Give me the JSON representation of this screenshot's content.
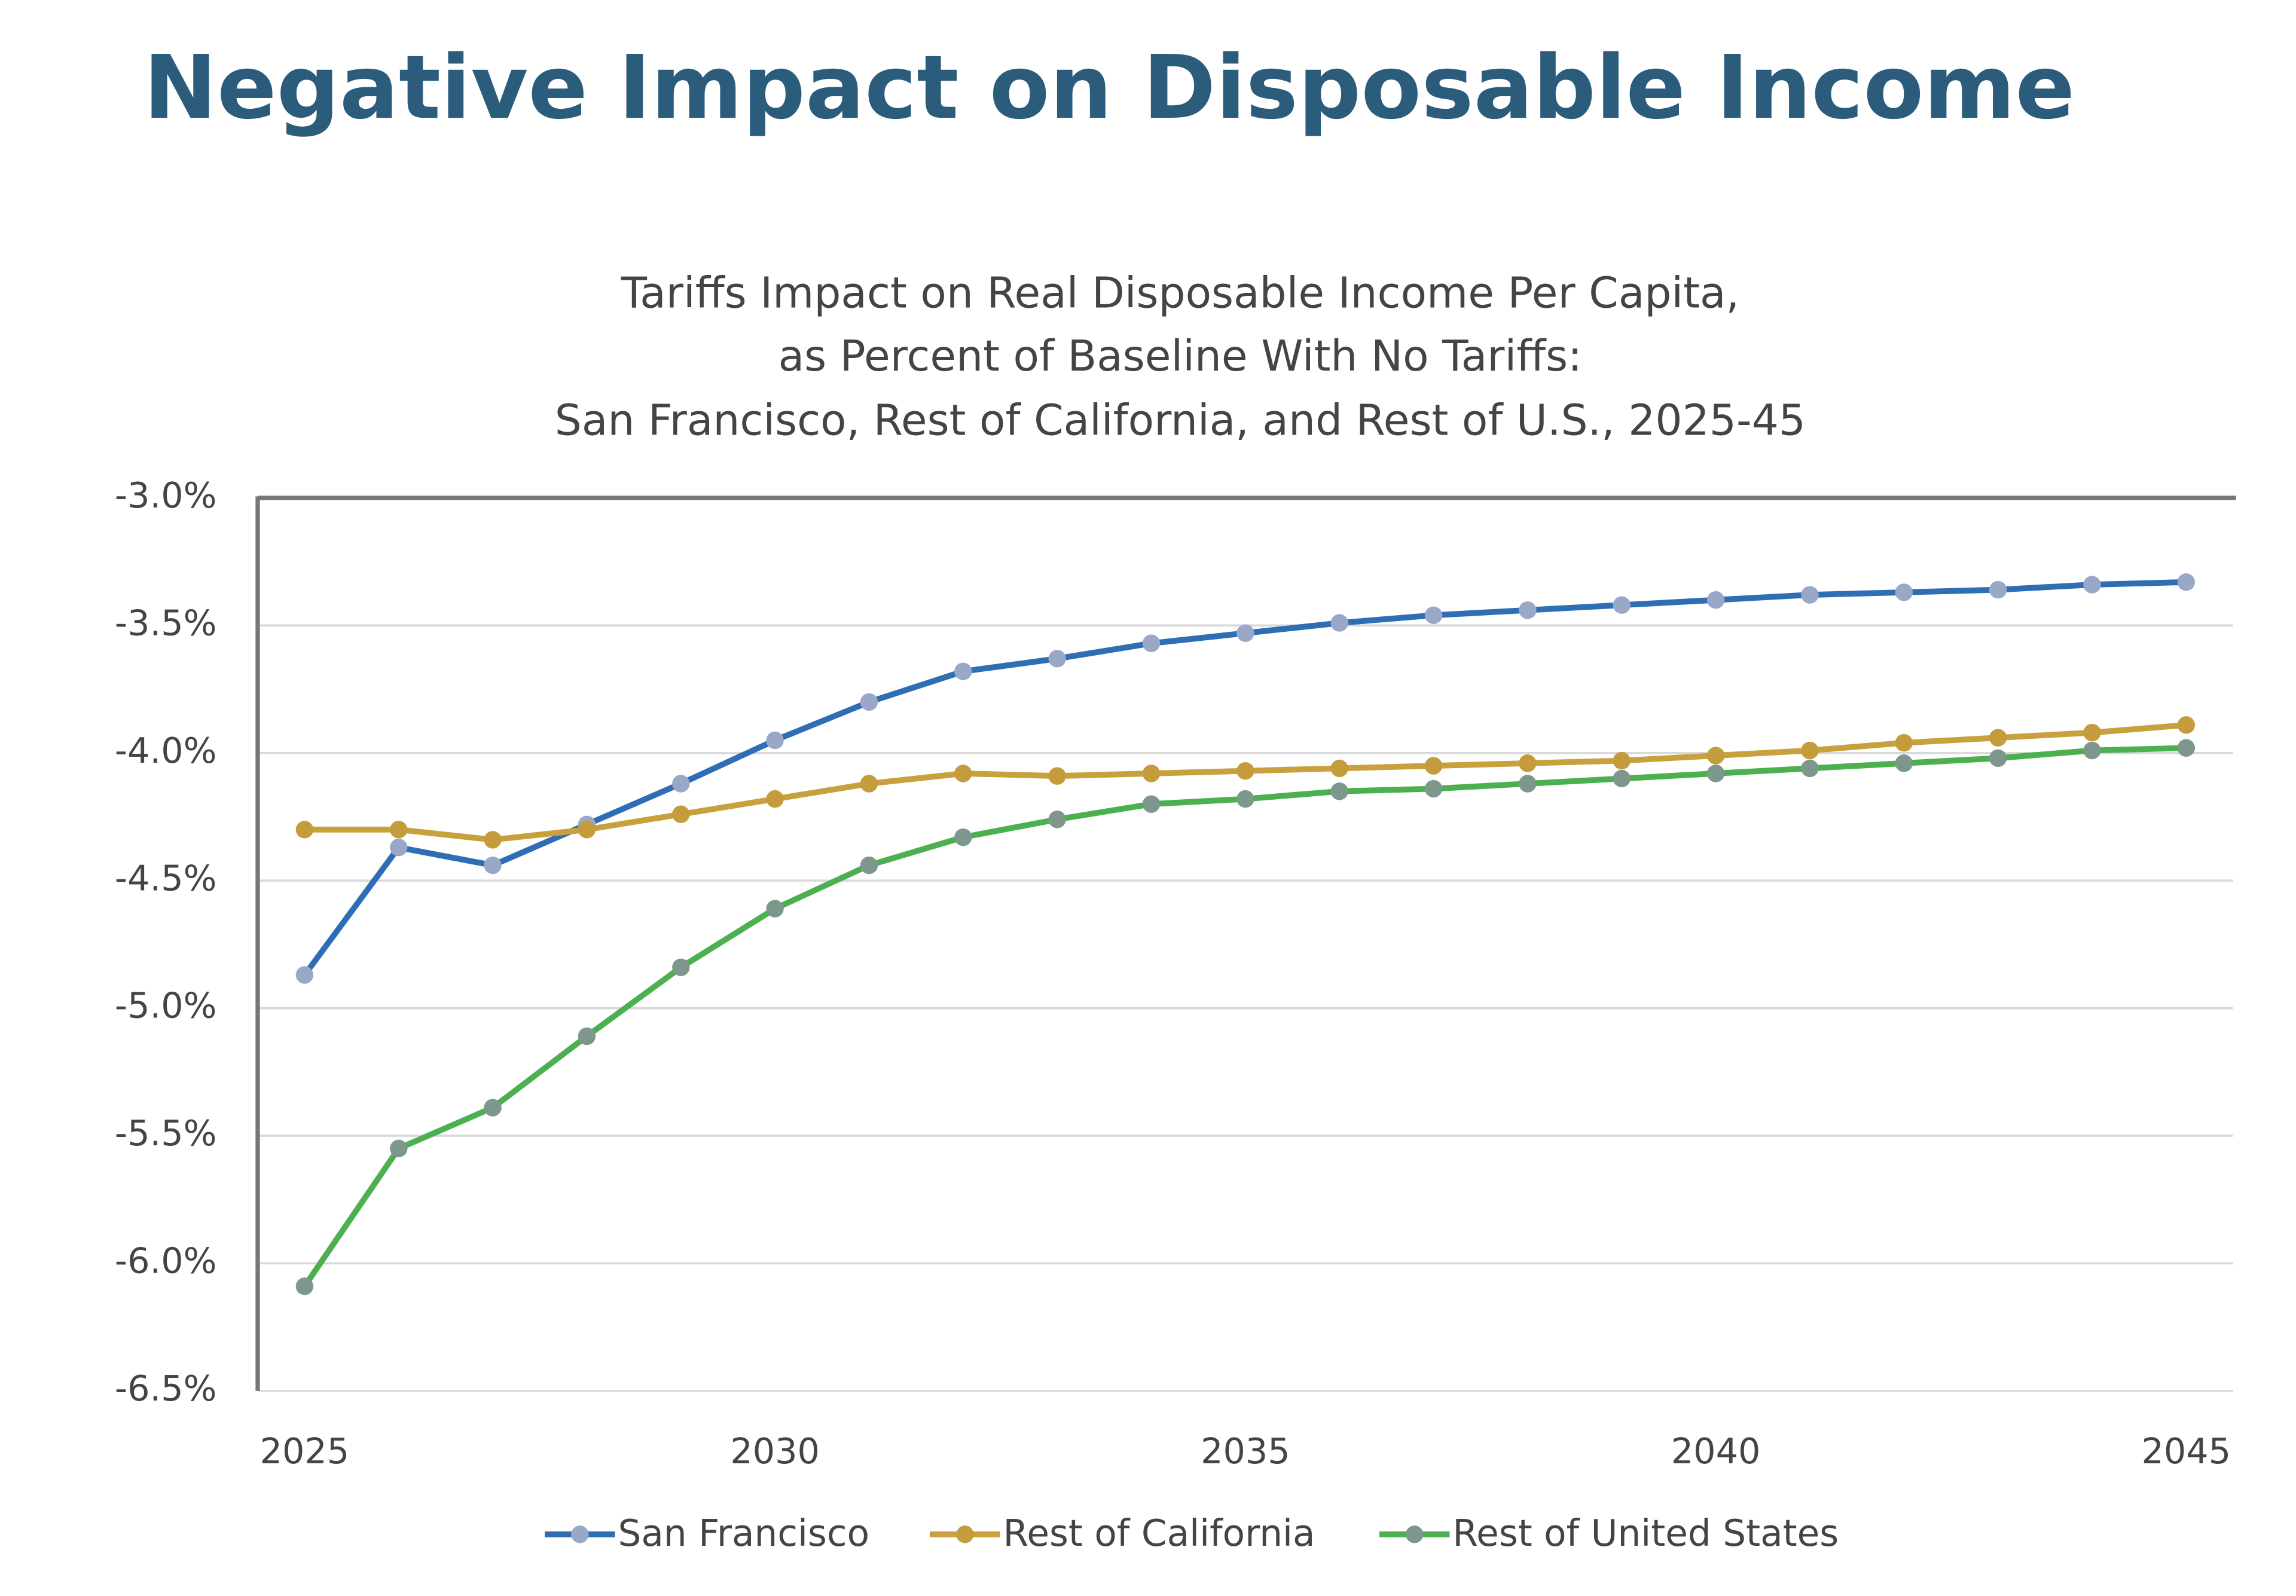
{
  "header": {
    "title": "Negative Impact on Disposable Income"
  },
  "chart_data": {
    "type": "line",
    "title": [
      "Tariffs Impact on Real Disposable Income Per Capita,",
      "as Percent of Baseline With No Tariffs:",
      "San Francisco, Rest of California, and Rest of U.S., 2025-45"
    ],
    "x": [
      2025,
      2026,
      2027,
      2028,
      2029,
      2030,
      2031,
      2032,
      2033,
      2034,
      2035,
      2036,
      2037,
      2038,
      2039,
      2040,
      2041,
      2042,
      2043,
      2044,
      2045
    ],
    "series": [
      {
        "name": "San Francisco",
        "color": "#2f6db5",
        "marker_color": "#9aa8c8",
        "values": [
          -4.87,
          -4.37,
          -4.44,
          -4.28,
          -4.12,
          -3.95,
          -3.8,
          -3.68,
          -3.63,
          -3.57,
          -3.53,
          -3.49,
          -3.46,
          -3.44,
          -3.42,
          -3.4,
          -3.38,
          -3.37,
          -3.36,
          -3.34,
          -3.33
        ]
      },
      {
        "name": "Rest of California",
        "color": "#c9a03e",
        "marker_color": "#c49c3c",
        "values": [
          -4.3,
          -4.3,
          -4.34,
          -4.3,
          -4.24,
          -4.18,
          -4.12,
          -4.08,
          -4.09,
          -4.08,
          -4.07,
          -4.06,
          -4.05,
          -4.04,
          -4.03,
          -4.01,
          -3.99,
          -3.96,
          -3.94,
          -3.92,
          -3.89
        ]
      },
      {
        "name": "Rest of United States",
        "color": "#4caf50",
        "marker_color": "#7e978c",
        "values": [
          -6.09,
          -5.55,
          -5.39,
          -5.11,
          -4.84,
          -4.61,
          -4.44,
          -4.33,
          -4.26,
          -4.2,
          -4.18,
          -4.15,
          -4.14,
          -4.12,
          -4.1,
          -4.08,
          -4.06,
          -4.04,
          -4.02,
          -3.99,
          -3.98
        ]
      }
    ],
    "xlim": [
      2025,
      2045
    ],
    "xticks": [
      2025,
      2030,
      2035,
      2040,
      2045
    ],
    "ylim": [
      -6.5,
      -3.0
    ],
    "yticks": [
      {
        "value": -6.5,
        "label": "-6.5%"
      },
      {
        "value": -6.0,
        "label": "-6.0%"
      },
      {
        "value": -5.5,
        "label": "-5.5%"
      },
      {
        "value": -5.0,
        "label": "-5.0%"
      },
      {
        "value": -4.5,
        "label": "-4.5%"
      },
      {
        "value": -4.0,
        "label": "-4.0%"
      },
      {
        "value": -3.5,
        "label": "-3.5%"
      },
      {
        "value": -3.0,
        "label": "-3.0%"
      }
    ],
    "grid": true,
    "legend": "bottom"
  }
}
